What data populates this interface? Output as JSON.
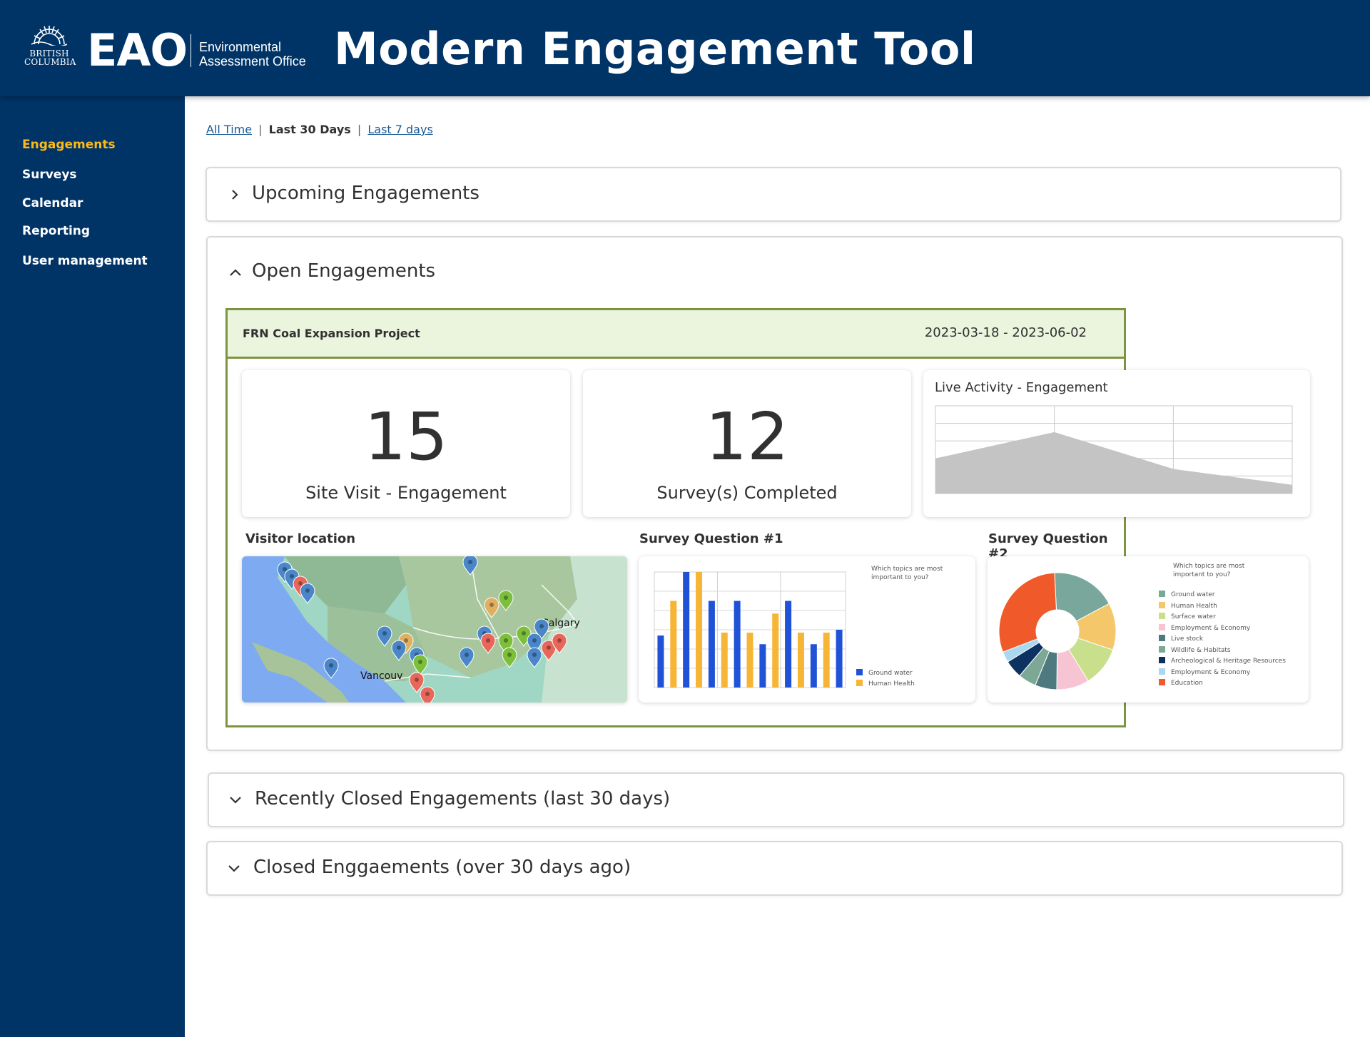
{
  "header": {
    "org_line1": "BRITISH",
    "org_line2": "COLUMBIA",
    "office_abbrev": "EAO",
    "office_line1": "Environmental",
    "office_line2": "Assessment Office",
    "app_title": "Modern Engagement Tool"
  },
  "sidebar": {
    "items": [
      {
        "label": "Engagements",
        "active": true
      },
      {
        "label": "Surveys",
        "active": false
      },
      {
        "label": "Calendar",
        "active": false
      },
      {
        "label": "Reporting",
        "active": false
      },
      {
        "label": "User management",
        "active": false
      }
    ]
  },
  "time_filter": {
    "all_time": "All Time",
    "last_30": "Last 30 Days",
    "last_7": "Last 7 days",
    "separator": "|",
    "selected": "Last 30 Days"
  },
  "accordions": {
    "upcoming": {
      "title": "Upcoming Engagements",
      "expanded": false
    },
    "open": {
      "title": "Open Engagements",
      "expanded": true
    },
    "recently_closed": {
      "title": "Recently Closed Engagements (last 30 days)",
      "expanded": false
    },
    "closed": {
      "title": "Closed Enggaements (over 30 days ago)",
      "expanded": false
    }
  },
  "engagement": {
    "name": "FRN Coal Expansion Project",
    "dates": "2023-03-18 - 2023-06-02",
    "kpis": [
      {
        "value": "15",
        "label": "Site Visit - Engagement"
      },
      {
        "value": "12",
        "label": "Survey(s) Completed"
      }
    ],
    "live_activity_title": "Live Activity - Engagement",
    "visitor_location_label": "Visitor location",
    "map_labels": {
      "city1": "Vancouv",
      "city2": "Calgary"
    },
    "survey1_label": "Survey Question #1",
    "survey2_label": "Survey Question #2"
  },
  "colors": {
    "header_bg": "#003366",
    "accent_gold": "#fcba19",
    "engagement_border": "#7d9440",
    "engagement_head_bg": "#ebf4dd"
  },
  "chart_data": [
    {
      "id": "live_activity",
      "type": "area",
      "title": "Live Activity - Engagement",
      "x": [
        0,
        1,
        2,
        3
      ],
      "values": [
        2,
        3.5,
        1.4,
        0.5
      ],
      "ylim": [
        0,
        5
      ],
      "grid": true,
      "color": "#c4c4c4"
    },
    {
      "id": "survey_q1",
      "type": "bar",
      "title": "Which topics are most important to you?",
      "categories": [
        "1",
        "2",
        "3",
        "4",
        "5",
        "6",
        "7",
        "8",
        "9",
        "10",
        "11",
        "12",
        "13",
        "14",
        "15"
      ],
      "values": [
        9,
        15,
        20,
        20,
        15,
        9.5,
        15,
        9.5,
        7.5,
        12.8,
        15,
        9.5,
        7.5,
        9.5,
        10
      ],
      "series_colors": [
        "#1f52d6",
        "#f7b535",
        "#1f52d6",
        "#f7b535",
        "#1f52d6",
        "#f7b535",
        "#1f52d6",
        "#f7b535",
        "#1f52d6",
        "#f7b535",
        "#1f52d6",
        "#f7b535",
        "#1f52d6",
        "#f7b535",
        "#1f52d6"
      ],
      "legend": [
        {
          "name": "Ground water",
          "color": "#1f52d6"
        },
        {
          "name": "Human Health",
          "color": "#f7b535"
        }
      ],
      "ylim": [
        0,
        20
      ],
      "grid": true,
      "legend_position": "bottom-right"
    },
    {
      "id": "survey_q2",
      "type": "pie",
      "title": "Which topics are most important to you?",
      "donut": true,
      "slices": [
        {
          "name": "Ground water",
          "value": 18,
          "color": "#7aa79b"
        },
        {
          "name": "Human Health",
          "value": 13,
          "color": "#f4c86a"
        },
        {
          "name": "Surface water",
          "value": 11,
          "color": "#c8e08c"
        },
        {
          "name": "Employment & Economy",
          "value": 9,
          "color": "#f6c4d2"
        },
        {
          "name": "Live stock",
          "value": 6,
          "color": "#4e7a7f"
        },
        {
          "name": "Wildlife & Habitats",
          "value": 5,
          "color": "#7ea896"
        },
        {
          "name": "Archeological & Heritage Resources",
          "value": 5,
          "color": "#0d3160"
        },
        {
          "name": "Employment & Economy",
          "value": 3,
          "color": "#a9d8ef"
        },
        {
          "name": "Education",
          "value": 30,
          "color": "#f05a2a"
        }
      ],
      "legend_position": "right"
    }
  ]
}
